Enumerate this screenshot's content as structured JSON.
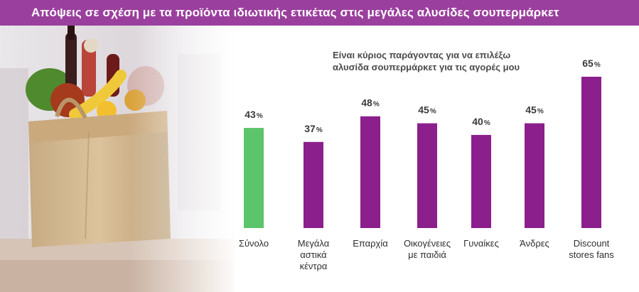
{
  "header": {
    "title": "Απόψεις σε σχέση με τα προϊόντα ιδιωτικής ετικέτας στις μεγάλες αλυσίδες σουπερμάρκετ"
  },
  "colors": {
    "title_bar": "#9a3f9d",
    "bar_purple": "#8b1f8c",
    "bar_green": "#5cc46a"
  },
  "image": {
    "icon": "shopping-bag-with-groceries-photo"
  },
  "chart_data": {
    "type": "bar",
    "subtitle_lines": [
      "Είναι κύριος παράγοντας για να επιλέξω",
      "αλυσίδα σουπερμάρκετ για τις αγορές μου"
    ],
    "categories": [
      [
        "Σύνολο"
      ],
      [
        "Μεγάλα",
        "αστικά",
        "κέντρα"
      ],
      [
        "Επαρχία"
      ],
      [
        "Οικογένειες",
        "με παιδιά"
      ],
      [
        "Γυναίκες"
      ],
      [
        "Άνδρες"
      ],
      [
        "Discount",
        "stores fans"
      ]
    ],
    "values": [
      43,
      37,
      48,
      45,
      40,
      45,
      65
    ],
    "value_suffix": "%",
    "highlight_index": 0,
    "xlabel": "",
    "ylabel": "",
    "ylim": [
      0,
      65
    ],
    "grid": false,
    "legend": "none"
  }
}
